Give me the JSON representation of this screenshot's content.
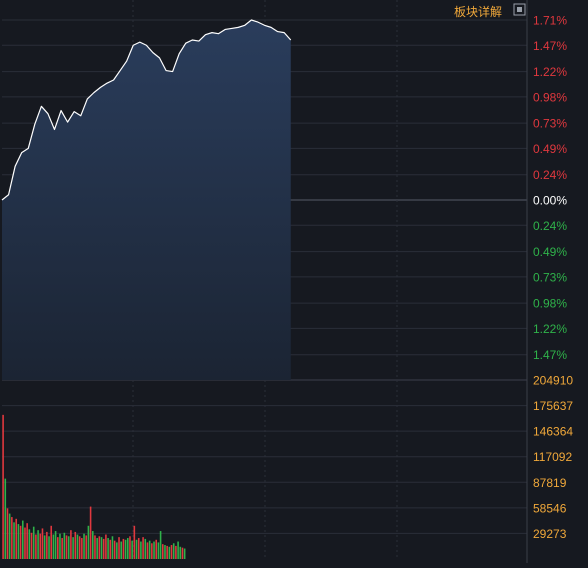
{
  "header": {
    "detail_link": "板块详解"
  },
  "colors": {
    "background": "#161920",
    "grid": "#2a2e38",
    "price_line": "#ffffff",
    "area_fill_top": "#2a3d5c",
    "area_fill_bottom": "#1b2433",
    "up": "#e0383e",
    "down": "#2fb24a",
    "zero": "#ffffff",
    "volume_label": "#f0a83a",
    "header_link": "#f0a83a"
  },
  "chart_data": [
    {
      "type": "line",
      "name": "price-change",
      "y_unit": "%",
      "ylim": [
        -1.71,
        1.71
      ],
      "grid": true,
      "y_ticks": [
        {
          "value": 1.71,
          "label": "1.71%",
          "tone": "up"
        },
        {
          "value": 1.47,
          "label": "1.47%",
          "tone": "up"
        },
        {
          "value": 1.22,
          "label": "1.22%",
          "tone": "up"
        },
        {
          "value": 0.98,
          "label": "0.98%",
          "tone": "up"
        },
        {
          "value": 0.73,
          "label": "0.73%",
          "tone": "up"
        },
        {
          "value": 0.49,
          "label": "0.49%",
          "tone": "up"
        },
        {
          "value": 0.24,
          "label": "0.24%",
          "tone": "up"
        },
        {
          "value": 0.0,
          "label": "0.00%",
          "tone": "zero"
        },
        {
          "value": -0.24,
          "label": "0.24%",
          "tone": "down"
        },
        {
          "value": -0.49,
          "label": "0.49%",
          "tone": "down"
        },
        {
          "value": -0.73,
          "label": "0.73%",
          "tone": "down"
        },
        {
          "value": -0.98,
          "label": "0.98%",
          "tone": "down"
        },
        {
          "value": -1.22,
          "label": "1.22%",
          "tone": "down"
        },
        {
          "value": -1.47,
          "label": "1.47%",
          "tone": "down"
        }
      ],
      "x_total": 240,
      "x": [
        0,
        3,
        6,
        9,
        12,
        15,
        18,
        21,
        24,
        27,
        30,
        33,
        36,
        39,
        42,
        45,
        48,
        51,
        54,
        57,
        60,
        63,
        66,
        69,
        72,
        75,
        78,
        81,
        84,
        87,
        90,
        93,
        96,
        99,
        102,
        105,
        108,
        111,
        114,
        117,
        120,
        123,
        126,
        129,
        132
      ],
      "y": [
        0.0,
        0.05,
        0.32,
        0.45,
        0.49,
        0.72,
        0.89,
        0.82,
        0.67,
        0.85,
        0.74,
        0.84,
        0.8,
        0.96,
        1.02,
        1.07,
        1.11,
        1.14,
        1.23,
        1.32,
        1.47,
        1.5,
        1.47,
        1.4,
        1.35,
        1.23,
        1.22,
        1.39,
        1.49,
        1.52,
        1.51,
        1.57,
        1.59,
        1.58,
        1.62,
        1.63,
        1.64,
        1.66,
        1.71,
        1.69,
        1.66,
        1.64,
        1.6,
        1.59,
        1.52
      ]
    },
    {
      "type": "bar",
      "name": "volume",
      "ylim": [
        0,
        204910
      ],
      "y_ticks": [
        {
          "value": 204910,
          "label": "204910"
        },
        {
          "value": 175637,
          "label": "175637"
        },
        {
          "value": 146364,
          "label": "146364"
        },
        {
          "value": 117092,
          "label": "117092"
        },
        {
          "value": 87819,
          "label": "87819"
        },
        {
          "value": 58546,
          "label": "58546"
        },
        {
          "value": 29273,
          "label": "29273"
        }
      ],
      "x_total": 240,
      "values": [
        165000,
        92000,
        58000,
        52000,
        48000,
        42000,
        46000,
        40000,
        38000,
        44000,
        36000,
        41000,
        34000,
        30000,
        37000,
        28000,
        33000,
        29000,
        35000,
        27000,
        31000,
        26000,
        38000,
        28000,
        32000,
        25000,
        29000,
        24000,
        30000,
        27000,
        26000,
        33000,
        25000,
        31000,
        28000,
        26000,
        24000,
        29000,
        27000,
        38000,
        60000,
        32000,
        27000,
        24000,
        26000,
        25000,
        23000,
        28000,
        24000,
        22000,
        26000,
        21000,
        19000,
        25000,
        20000,
        23000,
        22000,
        24000,
        26000,
        21000,
        38000,
        22000,
        24000,
        20000,
        25000,
        23000,
        19000,
        21000,
        18000,
        20000,
        22000,
        19000,
        32000,
        17000,
        16000,
        15000,
        14000,
        16000,
        18000,
        15000,
        20000,
        14000,
        13000,
        12000
      ],
      "colors": [
        "up",
        "down",
        "up",
        "down",
        "up",
        "down",
        "up",
        "down",
        "up",
        "down",
        "up",
        "up",
        "down",
        "up",
        "down",
        "up",
        "down",
        "up",
        "up",
        "down",
        "up",
        "down",
        "up",
        "down",
        "down",
        "up",
        "down",
        "up",
        "down",
        "up",
        "down",
        "up",
        "down",
        "up",
        "down",
        "up",
        "up",
        "down",
        "up",
        "down",
        "up",
        "down",
        "up",
        "down",
        "up",
        "down",
        "up",
        "up",
        "down",
        "up",
        "down",
        "up",
        "down",
        "up",
        "down",
        "up",
        "down",
        "down",
        "up",
        "down",
        "up",
        "down",
        "up",
        "down",
        "up",
        "down",
        "up",
        "down",
        "up",
        "down",
        "up",
        "down",
        "down",
        "up",
        "down",
        "up",
        "down",
        "up",
        "down",
        "up",
        "down",
        "down",
        "up",
        "down"
      ]
    }
  ]
}
